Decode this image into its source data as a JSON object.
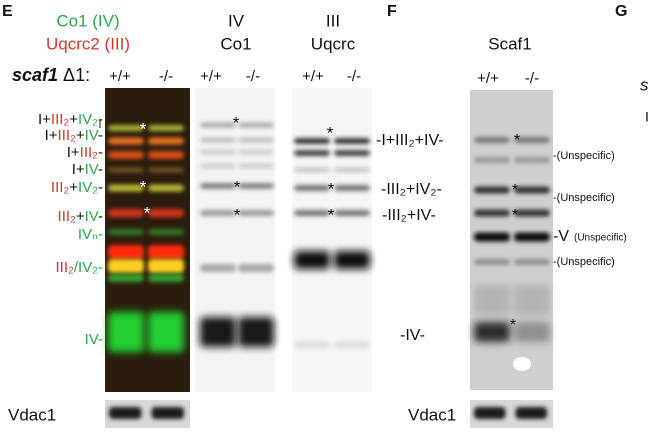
{
  "panel_e": {
    "letter": "E",
    "stain_labels": [
      {
        "text": "Co1 (IV)",
        "color": "#2aa84a"
      },
      {
        "text": "Uqcrc2 (III)",
        "color": "#d9342b"
      }
    ],
    "genotype": {
      "gene": "scaf1",
      "suffix": "Δ1:"
    },
    "lane_headers": [
      [
        "IV",
        "Co1"
      ],
      [
        "III",
        "Uqcrc"
      ]
    ],
    "lanes": [
      [
        "+/+",
        "-/-"
      ],
      [
        "+/+",
        "-/-"
      ],
      [
        "+/+",
        "-/-"
      ]
    ],
    "complex_labels": [
      [
        {
          "text": "I+",
          "color": "#111"
        },
        {
          "text": "III₂",
          "color": "#d9342b"
        },
        {
          "text": "+",
          "color": "#111"
        },
        {
          "text": "IV₂",
          "color": "#2aa84a"
        },
        {
          "text": "-",
          "color": "#111"
        }
      ],
      [
        {
          "text": "I+",
          "color": "#111"
        },
        {
          "text": "III₂",
          "color": "#d9342b"
        },
        {
          "text": "+",
          "color": "#111"
        },
        {
          "text": "IV",
          "color": "#2aa84a"
        },
        {
          "text": "-",
          "color": "#111"
        }
      ],
      [
        {
          "text": "I+",
          "color": "#111"
        },
        {
          "text": "III₂",
          "color": "#d9342b"
        },
        {
          "text": "-",
          "color": "#111"
        }
      ],
      [
        {
          "text": "I+",
          "color": "#111"
        },
        {
          "text": "IV",
          "color": "#2aa84a"
        },
        {
          "text": "-",
          "color": "#111"
        }
      ],
      [
        {
          "text": "III₂",
          "color": "#d9342b"
        },
        {
          "text": "+",
          "color": "#111"
        },
        {
          "text": "IV₂",
          "color": "#2aa84a"
        },
        {
          "text": "-",
          "color": "#111"
        }
      ],
      [
        {
          "text": "III₂",
          "color": "#d9342b"
        },
        {
          "text": "+",
          "color": "#111"
        },
        {
          "text": "IV",
          "color": "#2aa84a"
        },
        {
          "text": "-",
          "color": "#111"
        }
      ],
      [
        {
          "text": "IVₙ-",
          "color": "#2aa84a"
        }
      ],
      [
        {
          "text": "III₂",
          "color": "#d9342b"
        },
        {
          "text": "/IV₂-",
          "color": "#2aa84a"
        }
      ],
      [
        {
          "text": "IV-",
          "color": "#2aa84a"
        }
      ]
    ],
    "asterisks": [
      [
        "*",
        "*",
        "*"
      ],
      [
        "*",
        "*",
        "*"
      ],
      [
        "*",
        "*",
        "*"
      ]
    ],
    "loading_control": "Vdac1"
  },
  "panel_f": {
    "letter": "F",
    "header": "Scaf1",
    "lanes": [
      "+/+",
      "-/-"
    ],
    "left_labels": [
      "-I+III₂+IV-",
      "-III₂+IV₂-",
      "-III₂+IV-",
      "-IV-"
    ],
    "right_labels": [
      "-(Unspecific)",
      "-(Unspecific)",
      "-V",
      "(Unspecific)",
      "-(Unspecific)"
    ],
    "asterisks": [
      "*",
      "*",
      "*",
      "*"
    ],
    "loading_control": "Vdac1"
  },
  "panel_g": {
    "letter": "G",
    "fragments": [
      "s",
      "I"
    ]
  }
}
